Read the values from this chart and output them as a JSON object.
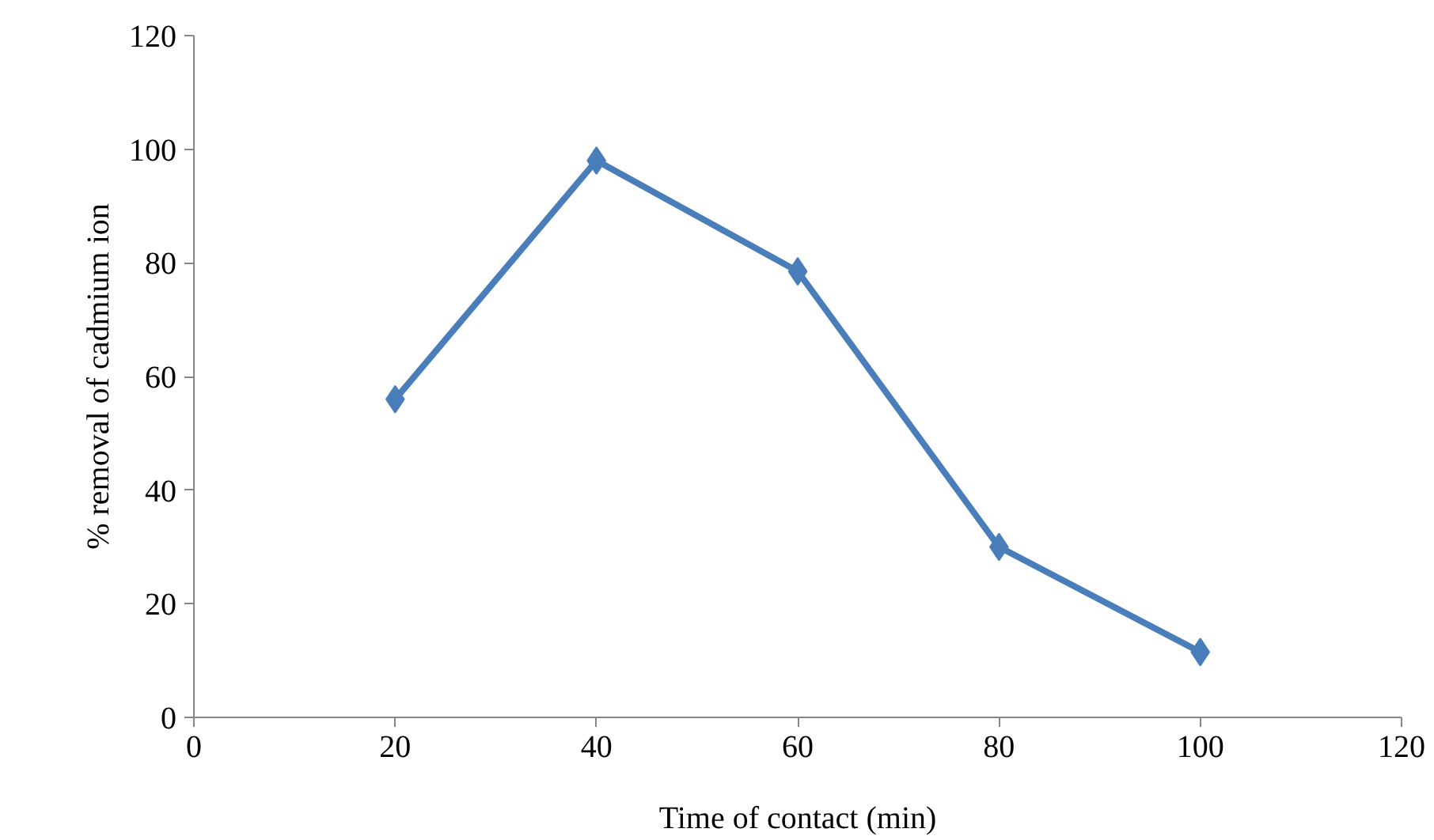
{
  "chart_data": {
    "type": "line",
    "xlabel": "Time of contact (min)",
    "ylabel": "% removal of cadmium ion",
    "x": [
      20,
      40,
      60,
      80,
      100
    ],
    "series": [
      {
        "color": "#4a7ebb",
        "values": [
          56,
          98,
          78.5,
          30,
          11.5
        ]
      }
    ],
    "xlim": [
      0,
      120
    ],
    "xticks": [
      0,
      20,
      40,
      60,
      80,
      100,
      120
    ],
    "ylim": [
      0,
      120
    ],
    "yticks": [
      0,
      20,
      40,
      60,
      80,
      100,
      120
    ],
    "grid": false,
    "marker": "diamond",
    "line_style": "solid"
  }
}
